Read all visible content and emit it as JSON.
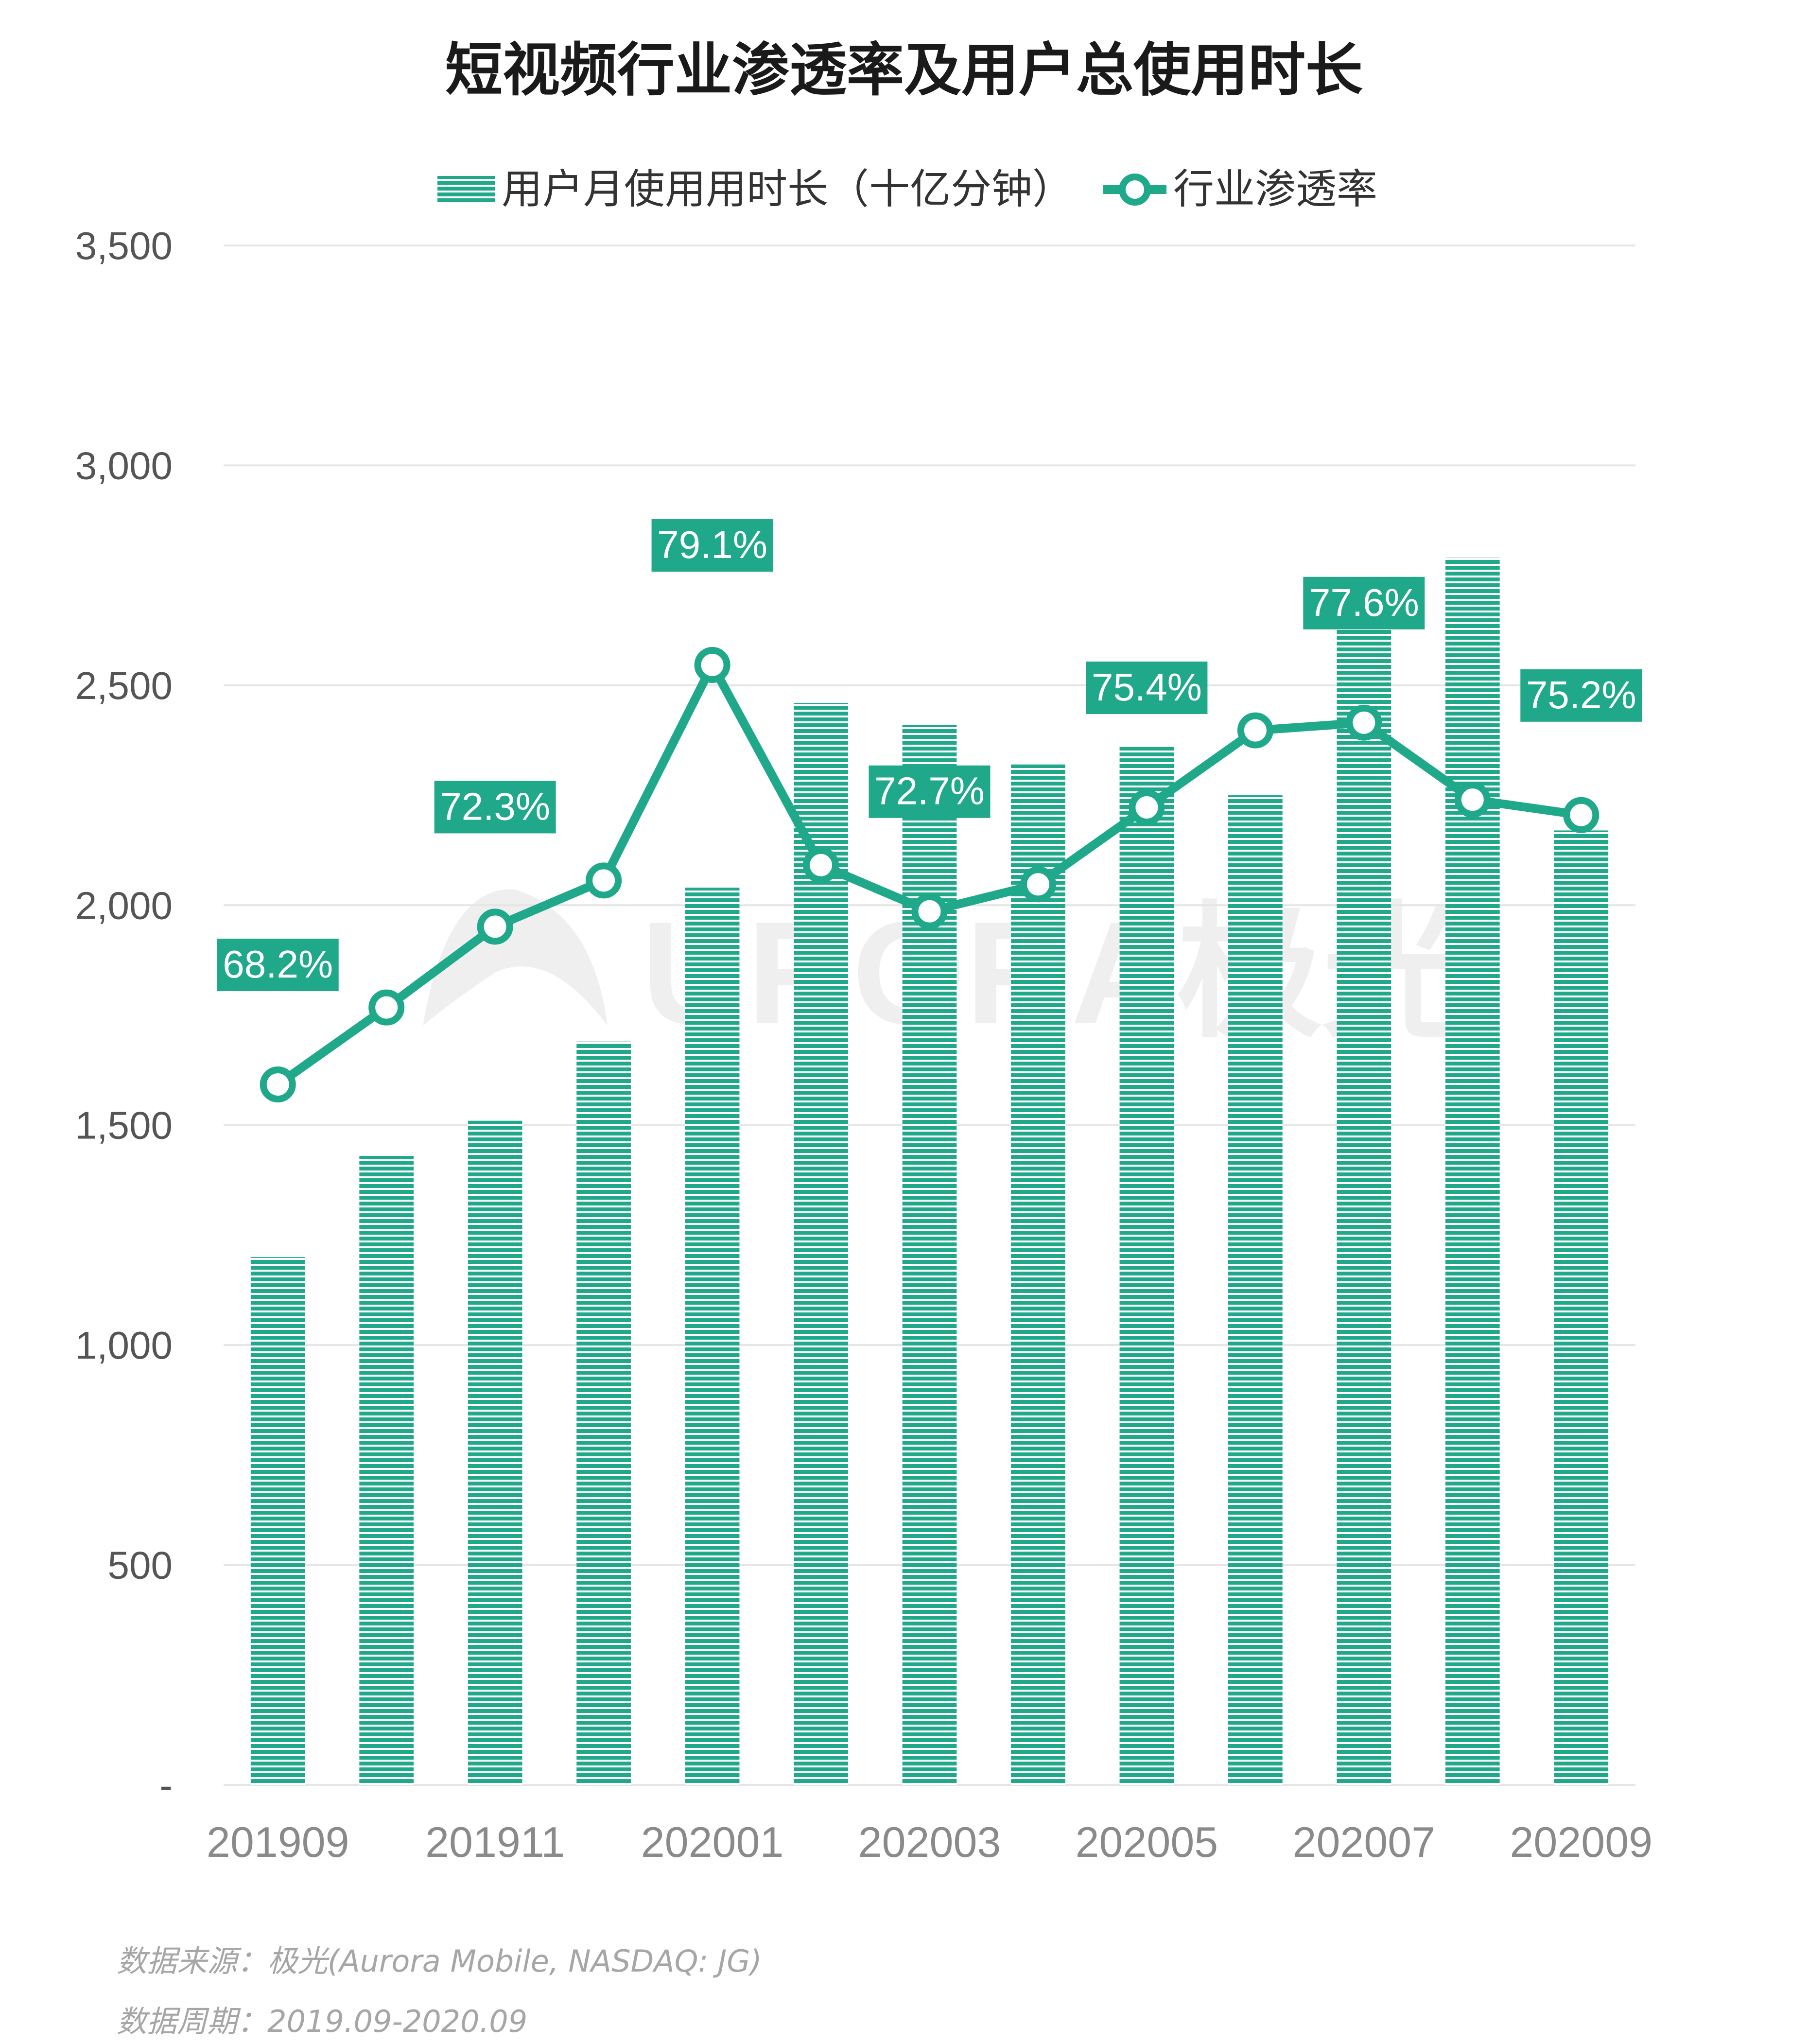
{
  "chart_data": {
    "type": "bar",
    "title": "短视频行业渗透率及用户总使用时长",
    "categories": [
      "201909",
      "201910",
      "201911",
      "201912",
      "202001",
      "202002",
      "202003",
      "202004",
      "202005",
      "202006",
      "202007",
      "202008",
      "202009"
    ],
    "x_tick_labels": [
      "201909",
      "201911",
      "202001",
      "202003",
      "202005",
      "202007",
      "202009"
    ],
    "series": [
      {
        "name": "用户月使用用时长（十亿分钟）",
        "type": "bar",
        "axis": "left",
        "values": [
          1200,
          1430,
          1510,
          1690,
          2040,
          2460,
          2410,
          2320,
          2360,
          2250,
          2700,
          2790,
          2170
        ]
      },
      {
        "name": "行业渗透率",
        "type": "line",
        "axis": "right",
        "unit": "%",
        "values": [
          68.2,
          70.2,
          72.3,
          73.5,
          79.1,
          73.9,
          72.7,
          73.4,
          75.4,
          77.4,
          77.6,
          75.6,
          75.2
        ],
        "data_labels": [
          {
            "index": 0,
            "text": "68.2%"
          },
          {
            "index": 2,
            "text": "72.3%"
          },
          {
            "index": 4,
            "text": "79.1%"
          },
          {
            "index": 6,
            "text": "72.7%"
          },
          {
            "index": 8,
            "text": "75.4%"
          },
          {
            "index": 10,
            "text": "77.6%"
          },
          {
            "index": 12,
            "text": "75.2%"
          }
        ]
      }
    ],
    "y_ticks": [
      {
        "value": 0,
        "label": "-"
      },
      {
        "value": 500,
        "label": "500"
      },
      {
        "value": 1000,
        "label": "1,000"
      },
      {
        "value": 1500,
        "label": "1,500"
      },
      {
        "value": 2000,
        "label": "2,000"
      },
      {
        "value": 2500,
        "label": "2,500"
      },
      {
        "value": 3000,
        "label": "3,000"
      },
      {
        "value": 3500,
        "label": "3,500"
      }
    ],
    "ylim": [
      0,
      3500
    ],
    "grid": true,
    "legend_position": "top-center"
  },
  "footnotes": {
    "source": "数据来源：极光(Aurora Mobile, NASDAQ: JG)",
    "period": "数据周期：2019.09-2020.09"
  },
  "watermark": {
    "text": "URORA极光"
  },
  "colors": {
    "primary": "#20a88a",
    "grid": "#e5e5e5",
    "watermark": "#efefef"
  }
}
